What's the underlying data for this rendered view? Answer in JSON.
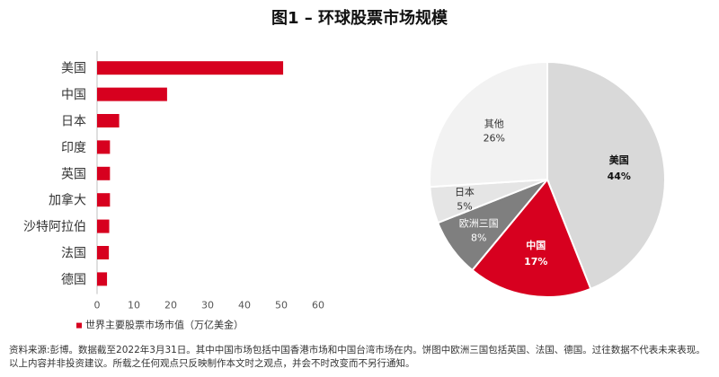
{
  "figure": {
    "title": "图1 – 环球股票市场规模",
    "footnote": "资料来源:彭博。数据截至2022年3月31日。其中中国市场包括中国香港市场和中国台湾市场在内。饼图中欧洲三国包括英国、法国、德国。过往数据不代表未来表现。以上内容并非投资建议。所载之任何观点只反映制作本文时之观点，并会不时改变而不另行通知。"
  },
  "chart_data": [
    {
      "type": "bar",
      "orientation": "horizontal",
      "categories": [
        "美国",
        "中国",
        "日本",
        "印度",
        "英国",
        "加拿大",
        "沙特阿拉伯",
        "法国",
        "德国"
      ],
      "series": [
        {
          "name": "世界主要股票市场市值（万亿美金）",
          "values": [
            50.5,
            19,
            6,
            3.5,
            3.5,
            3.5,
            3.3,
            3.2,
            2.7
          ]
        }
      ],
      "xlim": [
        0,
        60
      ],
      "xticks": [
        0,
        10,
        20,
        30,
        40,
        50,
        60
      ],
      "grid": false,
      "legend": "bottom",
      "color": "#d7001f"
    },
    {
      "type": "pie",
      "slices": [
        {
          "label": "美国",
          "value": 44,
          "value_label": "44%",
          "color": "#d9d9d9",
          "text_color": "#111111",
          "bold": true
        },
        {
          "label": "中国",
          "value": 17,
          "value_label": "17%",
          "color": "#d7001f",
          "text_color": "#ffffff",
          "bold": true
        },
        {
          "label": "欧洲三国",
          "value": 8,
          "value_label": "8%",
          "color": "#7f7f7f",
          "text_color": "#ffffff",
          "bold": false
        },
        {
          "label": "日本",
          "value": 5,
          "value_label": "5%",
          "color": "#e5e5e5",
          "text_color": "#333333",
          "bold": false
        },
        {
          "label": "其他",
          "value": 26,
          "value_label": "26%",
          "color": "#f2f2f2",
          "text_color": "#333333",
          "bold": false
        }
      ]
    }
  ]
}
